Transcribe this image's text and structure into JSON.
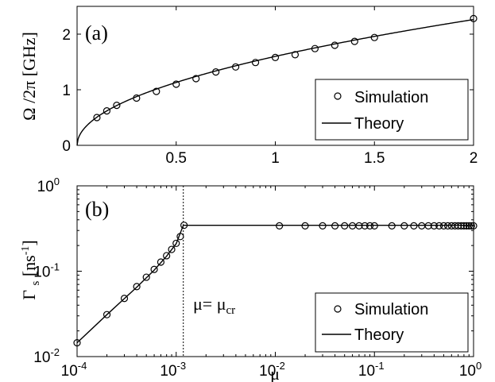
{
  "chart_data": [
    {
      "panel_label": "(a)",
      "type": "line",
      "xlabel": "",
      "ylabel": "Ω /2π  [GHz]",
      "xlim": [
        0,
        2
      ],
      "ylim": [
        0,
        2.5
      ],
      "xticks": [
        0.5,
        1,
        1.5,
        2
      ],
      "xtick_labels": [
        "0.5",
        "1",
        "1.5",
        "2"
      ],
      "yticks": [
        0,
        1,
        2
      ],
      "ytick_labels": [
        "0",
        "1",
        "2"
      ],
      "legend_position": "bottom-right",
      "series": [
        {
          "name": "Simulation",
          "style": "markers",
          "x": [
            0.1,
            0.15,
            0.2,
            0.3,
            0.4,
            0.5,
            0.6,
            0.7,
            0.8,
            0.9,
            1.0,
            1.1,
            1.2,
            1.3,
            1.4,
            1.5,
            2.0
          ],
          "y": [
            0.5,
            0.62,
            0.72,
            0.85,
            0.97,
            1.1,
            1.2,
            1.32,
            1.41,
            1.49,
            1.58,
            1.63,
            1.74,
            1.8,
            1.87,
            1.94,
            2.28
          ]
        },
        {
          "name": "Theory",
          "style": "line",
          "formula": "1.6*sqrt(x)"
        }
      ]
    },
    {
      "panel_label": "(b)",
      "type": "line",
      "xlabel": "μ",
      "ylabel": "Γ s  [ns-1]",
      "xscale": "log",
      "yscale": "log",
      "xlim": [
        0.0001,
        1
      ],
      "ylim": [
        0.01,
        1
      ],
      "xtick_exponents": [
        -4,
        -3,
        -2,
        -1,
        0
      ],
      "ytick_exponents": [
        -2,
        -1,
        0
      ],
      "legend_position": "bottom-right",
      "annotation": {
        "text": "μ= μcr",
        "x": 0.00118
      },
      "series": [
        {
          "name": "Simulation",
          "style": "markers",
          "x": [
            0.0001,
            0.0002,
            0.0003,
            0.0004,
            0.0005,
            0.0006,
            0.0007,
            0.0008,
            0.0009,
            0.001,
            0.0011,
            0.0012,
            0.011,
            0.02,
            0.03,
            0.04,
            0.05,
            0.06,
            0.07,
            0.08,
            0.09,
            0.1,
            0.15,
            0.2,
            0.25,
            0.3,
            0.35,
            0.4,
            0.45,
            0.5,
            0.55,
            0.6,
            0.65,
            0.7,
            0.75,
            0.8,
            0.85,
            0.9,
            0.95,
            1.0
          ],
          "y": [
            0.0145,
            0.031,
            0.048,
            0.066,
            0.085,
            0.105,
            0.128,
            0.152,
            0.18,
            0.212,
            0.255,
            0.345,
            0.34,
            0.34,
            0.34,
            0.34,
            0.34,
            0.34,
            0.34,
            0.34,
            0.34,
            0.34,
            0.34,
            0.34,
            0.34,
            0.34,
            0.34,
            0.34,
            0.34,
            0.34,
            0.34,
            0.34,
            0.34,
            0.34,
            0.34,
            0.34,
            0.34,
            0.34,
            0.34,
            0.34
          ]
        },
        {
          "name": "Theory",
          "style": "line",
          "x": [
            0.0001,
            0.0002,
            0.0004,
            0.0006,
            0.0008,
            0.001,
            0.00118,
            0.00118,
            1.0
          ],
          "y": [
            0.0145,
            0.031,
            0.065,
            0.103,
            0.15,
            0.21,
            0.345,
            0.345,
            0.345
          ]
        }
      ]
    }
  ]
}
